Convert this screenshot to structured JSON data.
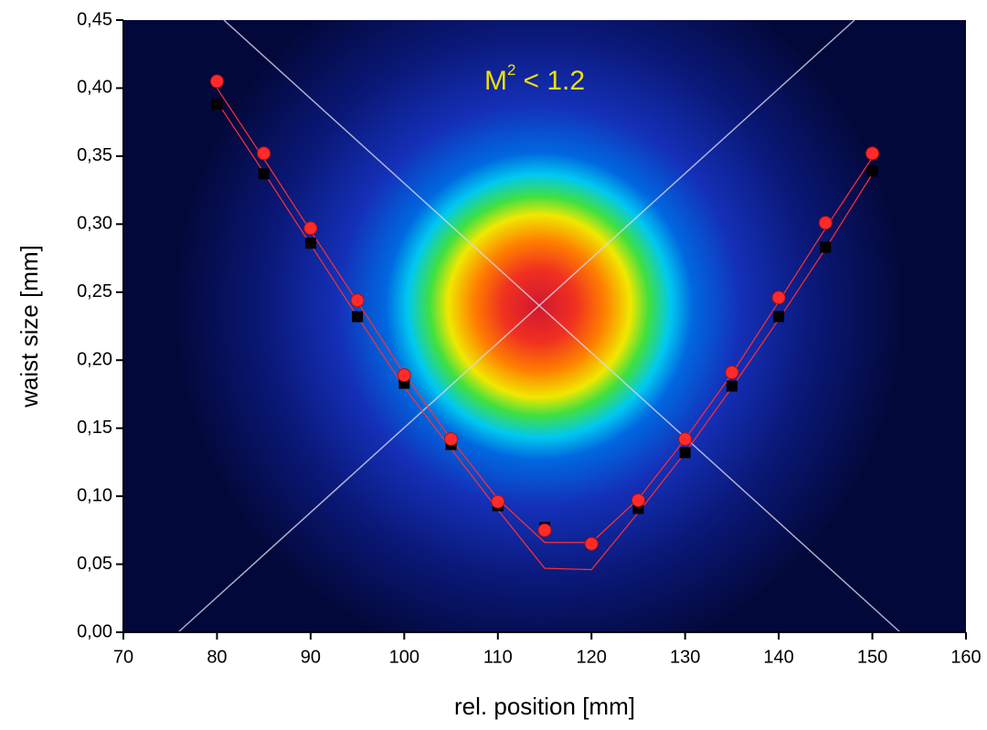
{
  "chart_data": {
    "type": "scatter",
    "annotation": {
      "base": "M",
      "superscript": "2",
      "rest": "< 1.2"
    },
    "x_label": "rel. position [mm]",
    "y_label": "waist size [mm]",
    "xlim": [
      70,
      160
    ],
    "xticks": [
      70,
      80,
      90,
      100,
      110,
      120,
      130,
      140,
      150,
      160
    ],
    "ylim": [
      0,
      0.45
    ],
    "yticks": [
      {
        "value": 0,
        "label": "0,00"
      },
      {
        "value": 0.05,
        "label": "0,05"
      },
      {
        "value": 0.1,
        "label": "0,10"
      },
      {
        "value": 0.15,
        "label": "0,15"
      },
      {
        "value": 0.2,
        "label": "0,20"
      },
      {
        "value": 0.25,
        "label": "0,25"
      },
      {
        "value": 0.3,
        "label": "0,30"
      },
      {
        "value": 0.35,
        "label": "0,35"
      },
      {
        "value": 0.4,
        "label": "0,40"
      },
      {
        "value": 0.45,
        "label": "0,45"
      }
    ],
    "x": [
      80,
      85,
      90,
      95,
      100,
      105,
      110,
      115,
      120,
      125,
      130,
      135,
      140,
      145,
      150
    ],
    "series": [
      {
        "marker": "line",
        "color": "#ff3030",
        "values": [
          0.39,
          0.338,
          0.285,
          0.232,
          0.18,
          0.135,
          0.09,
          0.047,
          0.046,
          0.088,
          0.132,
          0.18,
          0.23,
          0.282,
          0.337
        ]
      },
      {
        "marker": "line",
        "color": "#ff3030",
        "values": [
          0.4,
          0.348,
          0.295,
          0.243,
          0.19,
          0.142,
          0.098,
          0.066,
          0.066,
          0.098,
          0.142,
          0.19,
          0.243,
          0.297,
          0.349
        ]
      },
      {
        "marker": "square",
        "color": "#000000",
        "values": [
          0.388,
          0.337,
          0.286,
          0.232,
          0.183,
          0.138,
          0.093,
          0.077,
          0.065,
          0.091,
          0.132,
          0.181,
          0.232,
          0.283,
          0.339
        ]
      },
      {
        "marker": "circle",
        "color": "#ff2a2a",
        "values": [
          0.405,
          0.352,
          0.297,
          0.244,
          0.189,
          0.142,
          0.096,
          0.075,
          0.065,
          0.097,
          0.142,
          0.191,
          0.246,
          0.301,
          0.352
        ]
      }
    ]
  }
}
